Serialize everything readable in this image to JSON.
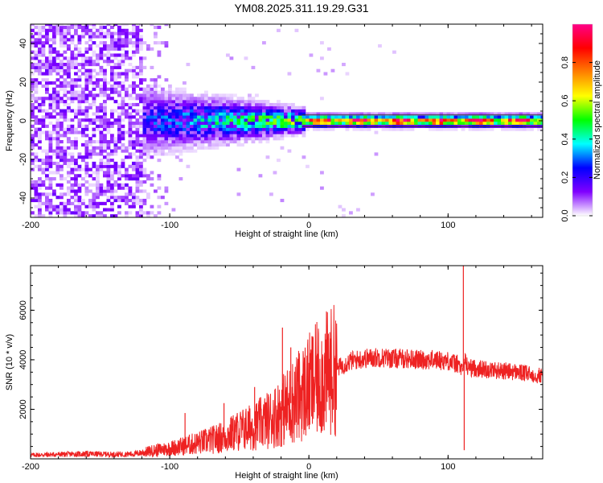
{
  "title": "YM08.2025.311.19.29.G31",
  "chart_data": [
    {
      "type": "heatmap",
      "title": "YM08.2025.311.19.29.G31",
      "xlabel": "Height of straight line (km)",
      "ylabel": "Frequency (Hz)",
      "xlim": [
        -200,
        168
      ],
      "ylim": [
        -50,
        50
      ],
      "xticks": [
        -200,
        -100,
        0,
        100
      ],
      "yticks": [
        -40,
        -20,
        0,
        20,
        40
      ],
      "colorbar": {
        "label": "Normalized spectral amplitude",
        "range": [
          0,
          1
        ],
        "ticks": [
          "0.0",
          "0.2",
          "0.4",
          "0.6",
          "0.8"
        ],
        "stops": [
          "#ffffff",
          "#8000ff",
          "#0000ff",
          "#00ffff",
          "#00ff00",
          "#ffff00",
          "#ff8000",
          "#ff0000",
          "#ff0088"
        ]
      },
      "features": {
        "noise_region_km": [
          -200,
          -120
        ],
        "signal_center_hz": 0,
        "signal_start_km": -120,
        "strong_line_start_km": -5
      }
    },
    {
      "type": "line",
      "xlabel": "Height of straight line (km)",
      "ylabel": "SNR (10 * v/v)",
      "xlim": [
        -200,
        168
      ],
      "ylim": [
        0,
        7800
      ],
      "xticks": [
        -200,
        -100,
        0,
        100
      ],
      "yticks": [
        2000,
        4000,
        6000
      ],
      "color": "#ee2222",
      "series": [
        {
          "name": "SNR",
          "x": [
            -200,
            -180,
            -160,
            -140,
            -125,
            -120,
            -110,
            -100,
            -90,
            -80,
            -70,
            -60,
            -50,
            -40,
            -30,
            -20,
            -10,
            0,
            10,
            20,
            30,
            40,
            50,
            60,
            70,
            80,
            90,
            100,
            108,
            110,
            112,
            114,
            120,
            130,
            140,
            150,
            160,
            168
          ],
          "values": [
            150,
            180,
            200,
            180,
            200,
            250,
            350,
            420,
            520,
            640,
            760,
            900,
            1150,
            1300,
            1550,
            1900,
            2400,
            2900,
            3350,
            3650,
            3950,
            4050,
            4100,
            4050,
            4050,
            4000,
            4000,
            3950,
            3800,
            3500,
            4000,
            3700,
            3650,
            3600,
            3550,
            3500,
            3400,
            3350
          ]
        }
      ],
      "spikes": [
        {
          "x": -89,
          "value": 1850
        },
        {
          "x": -61,
          "value": 2250
        },
        {
          "x": -39,
          "value": 2900
        },
        {
          "x": -19,
          "value": 5300
        },
        {
          "x": -13,
          "value": 4500
        },
        {
          "x": 3,
          "value": 4900
        },
        {
          "x": 111,
          "value": 7800
        },
        {
          "x": 111.6,
          "value": 350
        }
      ]
    }
  ]
}
